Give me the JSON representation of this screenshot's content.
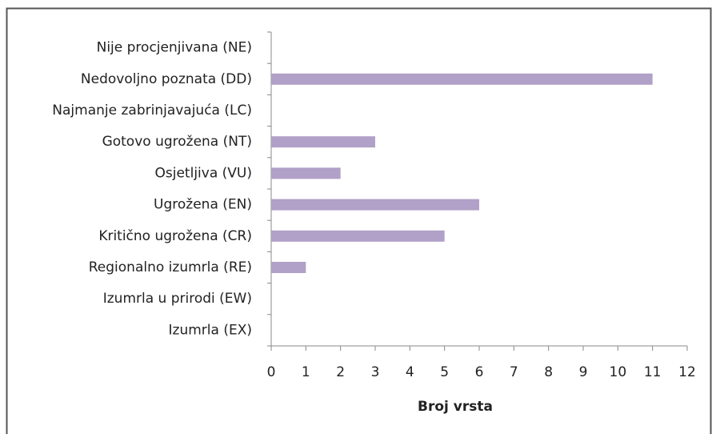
{
  "chart_data": {
    "type": "bar",
    "orientation": "horizontal",
    "categories": [
      "Nije procjenjivana (NE)",
      "Nedovoljno poznata (DD)",
      "Najmanje zabrinjavajuća (LC)",
      "Gotovo ugrožena (NT)",
      "Osjetljiva (VU)",
      "Ugrožena (EN)",
      "Kritično ugrožena (CR)",
      "Regionalno izumrla (RE)",
      "Izumrla u prirodi (EW)",
      "Izumrla (EX)"
    ],
    "values": [
      0,
      11,
      0,
      3,
      2,
      6,
      5,
      1,
      0,
      0
    ],
    "color": "#b1a0c7",
    "xlabel": "Broj vrsta",
    "xlim": [
      0,
      12
    ],
    "xticks": [
      0,
      1,
      2,
      3,
      4,
      5,
      6,
      7,
      8,
      9,
      10,
      11,
      12
    ],
    "grid": false
  }
}
